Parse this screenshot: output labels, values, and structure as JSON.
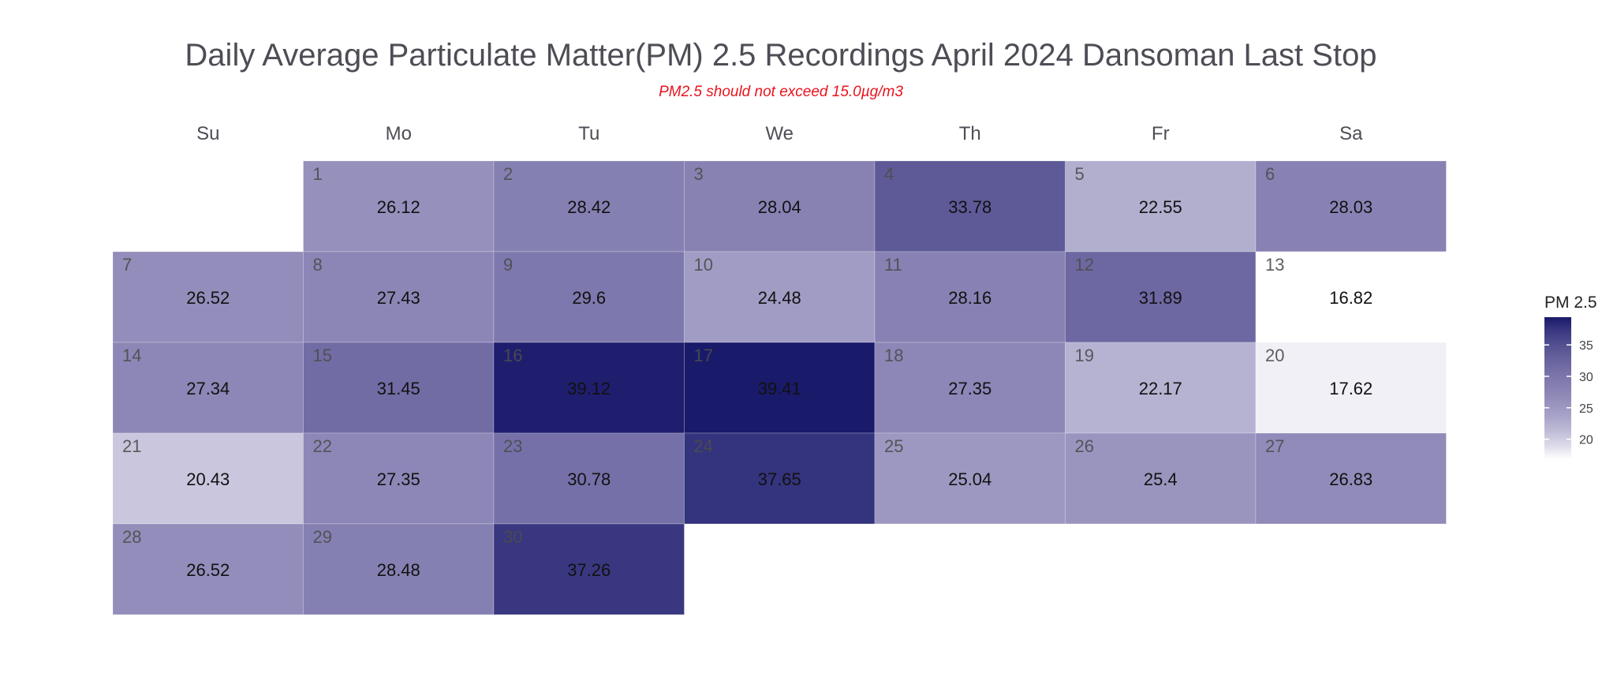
{
  "chart_data": {
    "type": "heatmap",
    "title": "Daily Average Particulate Matter(PM) 2.5 Recordings April 2024 Dansoman Last Stop",
    "subtitle": "PM2.5 should not exceed 15.0µg/m3",
    "weekdays": [
      "Su",
      "Mo",
      "Tu",
      "We",
      "Th",
      "Fr",
      "Sa"
    ],
    "first_weekday_index": 1,
    "days": [
      1,
      2,
      3,
      4,
      5,
      6,
      7,
      8,
      9,
      10,
      11,
      12,
      13,
      14,
      15,
      16,
      17,
      18,
      19,
      20,
      21,
      22,
      23,
      24,
      25,
      26,
      27,
      28,
      29,
      30
    ],
    "values": [
      "26.12",
      "28.42",
      "28.04",
      "33.78",
      "22.55",
      "28.03",
      "26.52",
      "27.43",
      "29.6",
      "24.48",
      "28.16",
      "31.89",
      "16.82",
      "27.34",
      "31.45",
      "39.12",
      "39.41",
      "27.35",
      "22.17",
      "17.62",
      "20.43",
      "27.35",
      "30.78",
      "37.65",
      "25.04",
      "25.4",
      "26.83",
      "26.52",
      "28.48",
      "37.26"
    ],
    "legend": {
      "title": "PM 2.5",
      "ticks": [
        20,
        25,
        30,
        35
      ],
      "range": [
        16.82,
        39.41
      ],
      "color_low": "#ffffff",
      "color_high": "#1a1a6b",
      "position": "right"
    }
  }
}
